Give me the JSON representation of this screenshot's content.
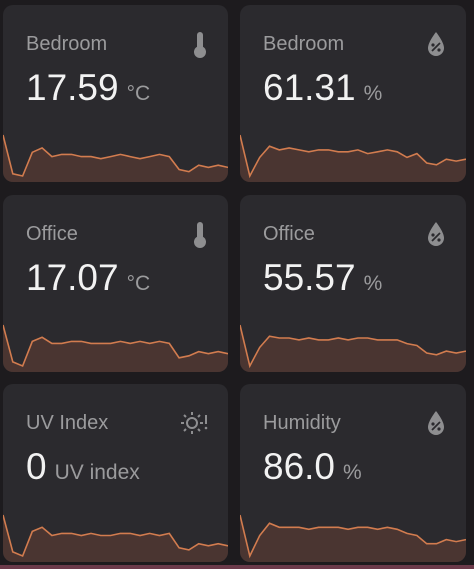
{
  "cards": [
    {
      "name": "Bedroom",
      "value": "17.59",
      "unit": "°C",
      "history": [
        30,
        12,
        11,
        22,
        24,
        20,
        21,
        21,
        20,
        20,
        19,
        20,
        21,
        20,
        19,
        20,
        21,
        20,
        14,
        13,
        16,
        15,
        16,
        15
      ]
    },
    {
      "name": "Bedroom",
      "value": "61.31",
      "unit": "%",
      "history": [
        32,
        10,
        20,
        26,
        24,
        25,
        24,
        23,
        24,
        24,
        23,
        23,
        24,
        22,
        23,
        24,
        23,
        20,
        22,
        17,
        16,
        19,
        18,
        19
      ]
    },
    {
      "name": "Office",
      "value": "17.07",
      "unit": "°C",
      "history": [
        30,
        12,
        10,
        22,
        24,
        21,
        21,
        22,
        22,
        21,
        21,
        21,
        22,
        21,
        22,
        21,
        22,
        21,
        14,
        15,
        17,
        16,
        17,
        16
      ]
    },
    {
      "name": "Office",
      "value": "55.57",
      "unit": "%",
      "history": [
        32,
        10,
        20,
        26,
        25,
        25,
        24,
        25,
        24,
        24,
        25,
        24,
        25,
        25,
        24,
        24,
        24,
        22,
        21,
        17,
        16,
        18,
        17,
        18
      ]
    },
    {
      "name": "UV Index",
      "value": "0",
      "unit": "UV index",
      "history": [
        30,
        12,
        10,
        22,
        24,
        20,
        21,
        21,
        20,
        21,
        20,
        20,
        21,
        21,
        20,
        21,
        20,
        21,
        14,
        13,
        16,
        15,
        16,
        15
      ]
    },
    {
      "name": "Humidity",
      "value": "86.0",
      "unit": "%",
      "history": [
        30,
        10,
        20,
        26,
        24,
        24,
        24,
        23,
        24,
        24,
        24,
        23,
        24,
        24,
        23,
        24,
        23,
        21,
        20,
        16,
        16,
        18,
        17,
        18
      ]
    }
  ]
}
